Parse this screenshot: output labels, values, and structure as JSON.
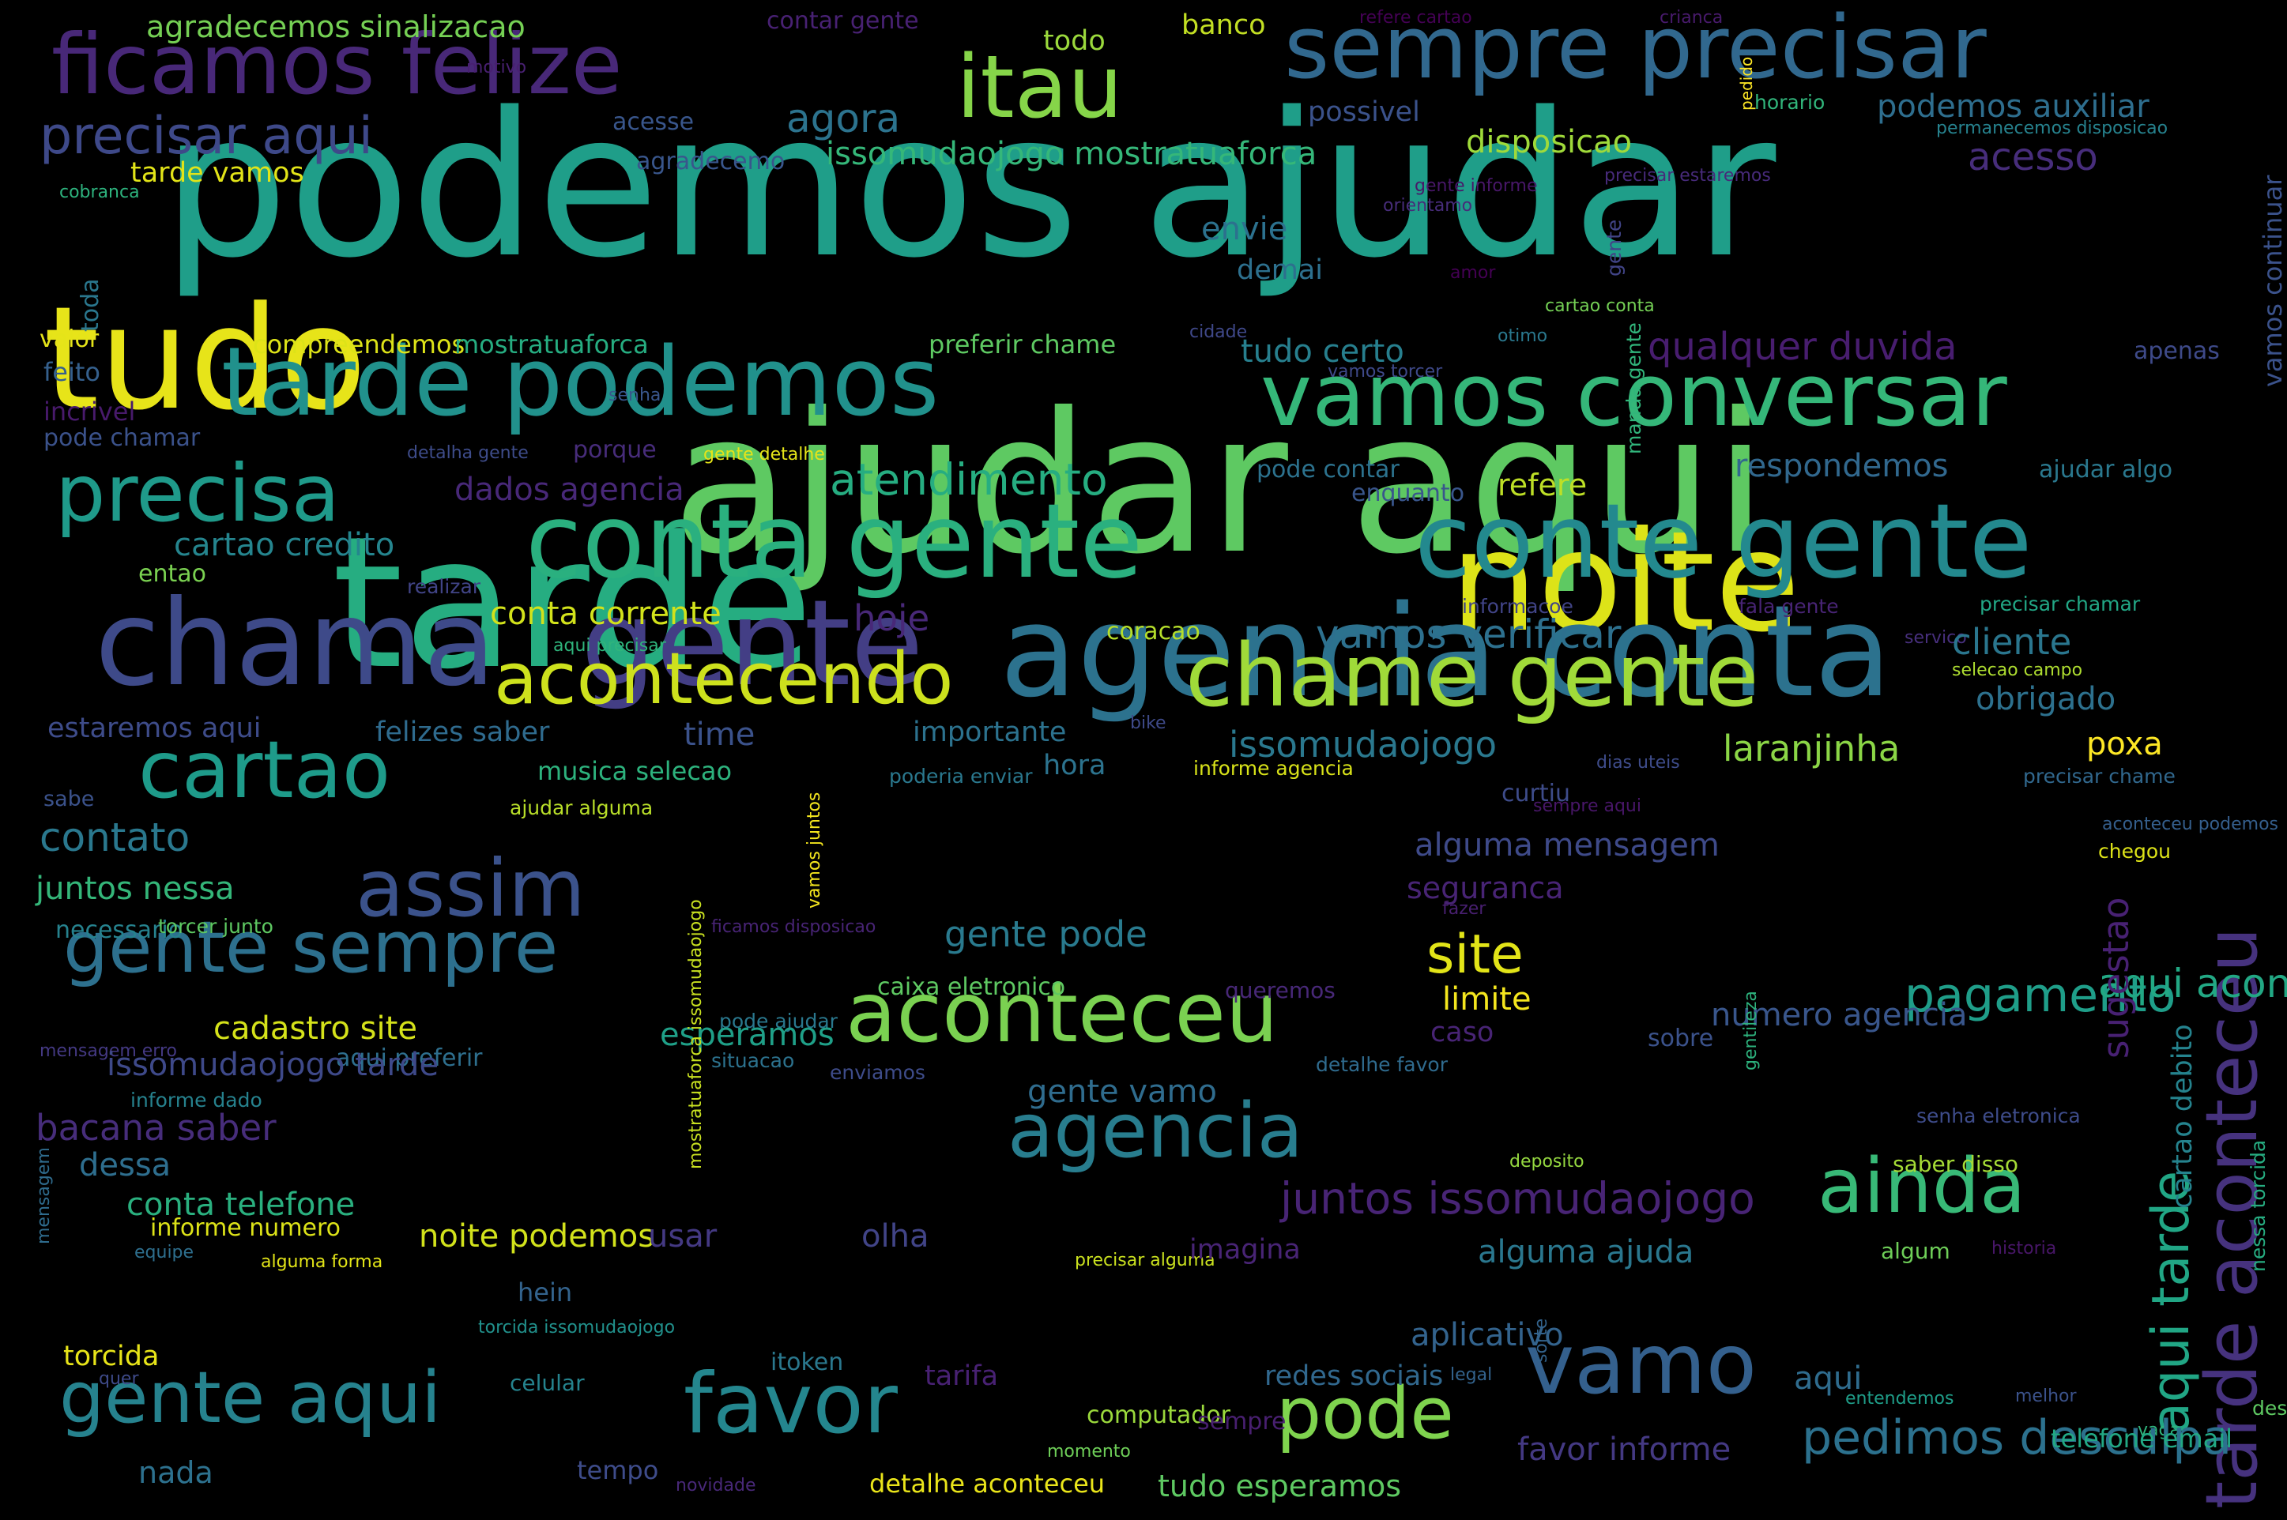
{
  "words": [
    {
      "text": "podemos ajudar",
      "color": "#1f9e89"
    },
    {
      "text": "ajudar aqui",
      "color": "#5ec962"
    },
    {
      "text": "tarde",
      "color": "#26ad81"
    },
    {
      "text": "tudo",
      "color": "#e7e419"
    },
    {
      "text": "noite",
      "color": "#dde318"
    },
    {
      "text": "agencia conta",
      "color": "#2c728e"
    },
    {
      "text": "chama",
      "color": "#3e4a89"
    },
    {
      "text": "gente",
      "color": "#433e85"
    },
    {
      "text": "conta gente",
      "color": "#2ab07f"
    },
    {
      "text": "conte gente",
      "color": "#23898e"
    },
    {
      "text": "tarde podemos",
      "color": "#21918c"
    },
    {
      "text": "vamos conversar",
      "color": "#35b779"
    },
    {
      "text": "chame gente",
      "color": "#a0da39"
    },
    {
      "text": "acontecendo",
      "color": "#cde11d"
    },
    {
      "text": "aconteceu",
      "color": "#7ad151"
    },
    {
      "text": "itau",
      "color": "#86d549"
    },
    {
      "text": "sempre precisar",
      "color": "#31688e"
    },
    {
      "text": "ficamos felize",
      "color": "#482878"
    },
    {
      "text": "precisa",
      "color": "#1f9a8a"
    },
    {
      "text": "cartao",
      "color": "#1e9b8a"
    },
    {
      "text": "assim",
      "color": "#3b528b"
    },
    {
      "text": "gente sempre",
      "color": "#2d708e"
    },
    {
      "text": "gente aqui",
      "color": "#26828e"
    },
    {
      "text": "favor",
      "color": "#24868e"
    },
    {
      "text": "vamo",
      "color": "#34608d"
    },
    {
      "text": "pode",
      "color": "#7fd34e"
    },
    {
      "text": "agencia",
      "color": "#287d8e"
    },
    {
      "text": "ainda",
      "color": "#38b977"
    },
    {
      "text": "tarde aconteceu",
      "color": "#46327e"
    },
    {
      "text": "aqui tarde",
      "color": "#21a685"
    },
    {
      "text": "precisar aqui",
      "color": "#3e4989"
    },
    {
      "text": "agradecemos sinalizacao",
      "color": "#75d054"
    },
    {
      "text": "contar gente",
      "color": "#482173"
    },
    {
      "text": "todo",
      "color": "#9bd93c"
    },
    {
      "text": "banco",
      "color": "#c2df23"
    },
    {
      "text": "refere cartao",
      "color": "#440154"
    },
    {
      "text": "crianca",
      "color": "#481a6c"
    },
    {
      "text": "motivo",
      "color": "#482071"
    },
    {
      "text": "agora",
      "color": "#2c738e"
    },
    {
      "text": "possivel",
      "color": "#3b528b"
    },
    {
      "text": "horario",
      "color": "#31b57b"
    },
    {
      "text": "pedido",
      "color": "#fde725"
    },
    {
      "text": "podemos auxiliar",
      "color": "#2e6e8e"
    },
    {
      "text": "permanecemos disposicao",
      "color": "#26828e"
    },
    {
      "text": "acesse",
      "color": "#39568c"
    },
    {
      "text": "agradecemo",
      "color": "#39568c"
    },
    {
      "text": "issomudaojogo mostratuaforca",
      "color": "#35b779"
    },
    {
      "text": "disposicao",
      "color": "#9fda3a"
    },
    {
      "text": "acesso",
      "color": "#472d7b"
    },
    {
      "text": "tarde vamos",
      "color": "#e2e418"
    },
    {
      "text": "cobranca",
      "color": "#2db27d"
    },
    {
      "text": "gente informe",
      "color": "#481769"
    },
    {
      "text": "orientamo",
      "color": "#472c7a"
    },
    {
      "text": "precisar estaremos",
      "color": "#472a7a"
    },
    {
      "text": "envie",
      "color": "#2c718e"
    },
    {
      "text": "toda",
      "color": "#2a778e"
    },
    {
      "text": "demai",
      "color": "#2d708e"
    },
    {
      "text": "amor",
      "color": "#440154"
    },
    {
      "text": "gente",
      "color": "#414487"
    },
    {
      "text": "vamos continuar",
      "color": "#3b528b"
    },
    {
      "text": "cartao conta",
      "color": "#74d055"
    },
    {
      "text": "cidade",
      "color": "#3f4889"
    },
    {
      "text": "otimo",
      "color": "#2a788e"
    },
    {
      "text": "valor",
      "color": "#e5e419"
    },
    {
      "text": "compreendemos",
      "color": "#dde318"
    },
    {
      "text": "mostratuaforca",
      "color": "#26ad81"
    },
    {
      "text": "preferir chame",
      "color": "#5ec962"
    },
    {
      "text": "tudo certo",
      "color": "#277f8e"
    },
    {
      "text": "qualquer duvida",
      "color": "#481d6f"
    },
    {
      "text": "apenas",
      "color": "#3e4a89"
    },
    {
      "text": "feito",
      "color": "#35608d"
    },
    {
      "text": "vamos torcer",
      "color": "#3e4989"
    },
    {
      "text": "manda gente",
      "color": "#31b57b"
    },
    {
      "text": "incrivel",
      "color": "#481a6c"
    },
    {
      "text": "senha",
      "color": "#39568c"
    },
    {
      "text": "pode chamar",
      "color": "#3b528b"
    },
    {
      "text": "detalha gente",
      "color": "#3e4c8a"
    },
    {
      "text": "porque",
      "color": "#472c7a"
    },
    {
      "text": "gente detalhe",
      "color": "#e5e419"
    },
    {
      "text": "respondemos",
      "color": "#31688e"
    },
    {
      "text": "ajudar algo",
      "color": "#2a788e"
    },
    {
      "text": "dados agencia",
      "color": "#482878"
    },
    {
      "text": "atendimento",
      "color": "#26ad81"
    },
    {
      "text": "pode contar",
      "color": "#2c728e"
    },
    {
      "text": "enquanto",
      "color": "#39568c"
    },
    {
      "text": "refere",
      "color": "#bddf26"
    },
    {
      "text": "cartao credito",
      "color": "#25858e"
    },
    {
      "text": "entao",
      "color": "#7ad151"
    },
    {
      "text": "realizar",
      "color": "#414487"
    },
    {
      "text": "informacoe",
      "color": "#414487"
    },
    {
      "text": "fala gente",
      "color": "#482475"
    },
    {
      "text": "precisar chamar",
      "color": "#22a785"
    },
    {
      "text": "servico",
      "color": "#472f7d"
    },
    {
      "text": "conta corrente",
      "color": "#d2e21b"
    },
    {
      "text": "hoje",
      "color": "#482878"
    },
    {
      "text": "aqui precisar",
      "color": "#2fb47c"
    },
    {
      "text": "coracao",
      "color": "#b5de2b"
    },
    {
      "text": "vamos verificar",
      "color": "#2d708e"
    },
    {
      "text": "cliente",
      "color": "#2a768e"
    },
    {
      "text": "selecao campo",
      "color": "#addc30"
    },
    {
      "text": "estaremos aqui",
      "color": "#3e4c8a"
    },
    {
      "text": "felizes saber",
      "color": "#2f6b8e"
    },
    {
      "text": "time",
      "color": "#3b528b"
    },
    {
      "text": "importante",
      "color": "#2c728e"
    },
    {
      "text": "bike",
      "color": "#3e4a89"
    },
    {
      "text": "obrigado",
      "color": "#2d718e"
    },
    {
      "text": "issomudaojogo",
      "color": "#2a788e"
    },
    {
      "text": "laranjinha",
      "color": "#8bd646"
    },
    {
      "text": "poxa",
      "color": "#fde725"
    },
    {
      "text": "dias uteis",
      "color": "#3e4c8a"
    },
    {
      "text": "musica selecao",
      "color": "#2db27d"
    },
    {
      "text": "hora",
      "color": "#2c738e"
    },
    {
      "text": "informe agencia",
      "color": "#d8e219"
    },
    {
      "text": "precisar chame",
      "color": "#31688e"
    },
    {
      "text": "sabe",
      "color": "#3b528b"
    },
    {
      "text": "poderia enviar",
      "color": "#2a788e"
    },
    {
      "text": "curtiu",
      "color": "#3e4c8a"
    },
    {
      "text": "ajudar alguma",
      "color": "#b8de29"
    },
    {
      "text": "sempre aqui",
      "color": "#481668"
    },
    {
      "text": "chegou",
      "color": "#dde318"
    },
    {
      "text": "aconteceu podemos",
      "color": "#355f8d"
    },
    {
      "text": "contato",
      "color": "#2a788e"
    },
    {
      "text": "alguma mensagem",
      "color": "#3e4a89"
    },
    {
      "text": "vamos juntos",
      "color": "#f4e61e"
    },
    {
      "text": "juntos nessa",
      "color": "#34b679"
    },
    {
      "text": "seguranca",
      "color": "#482475"
    },
    {
      "text": "fazer",
      "color": "#481f70"
    },
    {
      "text": "necessario",
      "color": "#26828e"
    },
    {
      "text": "torcer junto",
      "color": "#5ec962"
    },
    {
      "text": "ficamos disposicao",
      "color": "#482475"
    },
    {
      "text": "gente pode",
      "color": "#297a8e"
    },
    {
      "text": "site",
      "color": "#e2e418"
    },
    {
      "text": "pagamento",
      "color": "#1f9e89"
    },
    {
      "text": "aqui aconteceu",
      "color": "#22a884"
    },
    {
      "text": "cartao debito",
      "color": "#25838e"
    },
    {
      "text": "caixa eletronico",
      "color": "#5ec962"
    },
    {
      "text": "queremos",
      "color": "#482878"
    },
    {
      "text": "limite",
      "color": "#f4e61e"
    },
    {
      "text": "pode ajudar",
      "color": "#2a788e"
    },
    {
      "text": "numero agencia",
      "color": "#39568c"
    },
    {
      "text": "cadastro site",
      "color": "#d5e21a"
    },
    {
      "text": "caso",
      "color": "#482475"
    },
    {
      "text": "sugestao",
      "color": "#482173"
    },
    {
      "text": "mensagem erro",
      "color": "#443983"
    },
    {
      "text": "aqui preferir",
      "color": "#2e6f8e"
    },
    {
      "text": "sobre",
      "color": "#3b528b"
    },
    {
      "text": "esperamos",
      "color": "#1fa088"
    },
    {
      "text": "issomudaojogo tarde",
      "color": "#3e4989"
    },
    {
      "text": "situacao",
      "color": "#2c728e"
    },
    {
      "text": "enviamos",
      "color": "#3e4c8a"
    },
    {
      "text": "gentileza",
      "color": "#2db27d"
    },
    {
      "text": "detalhe favor",
      "color": "#2f6b8e"
    },
    {
      "text": "informe dado",
      "color": "#26828e"
    },
    {
      "text": "gente vamo",
      "color": "#2f6c8e"
    },
    {
      "text": "bacana saber",
      "color": "#472d7b"
    },
    {
      "text": "senha eletronica",
      "color": "#3e4c8a"
    },
    {
      "text": "nessa torcida",
      "color": "#26ad81"
    },
    {
      "text": "dessa",
      "color": "#2e6e8e"
    },
    {
      "text": "mostratuaforca issomudaojogo",
      "color": "#c8e020"
    },
    {
      "text": "deposito",
      "color": "#95d840"
    },
    {
      "text": "saber disso",
      "color": "#a5db36"
    },
    {
      "text": "conta telefone",
      "color": "#2ab07f"
    },
    {
      "text": "juntos issomudaojogo",
      "color": "#482475"
    },
    {
      "text": "mensagem",
      "color": "#2f6c8e"
    },
    {
      "text": "informe numero",
      "color": "#dde318"
    },
    {
      "text": "noite podemos",
      "color": "#d2e21b"
    },
    {
      "text": "usar",
      "color": "#443983"
    },
    {
      "text": "olha",
      "color": "#414487"
    },
    {
      "text": "equipe",
      "color": "#2e6f8e"
    },
    {
      "text": "alguma forma",
      "color": "#e2e418"
    },
    {
      "text": "precisar alguma",
      "color": "#cae11f"
    },
    {
      "text": "imagina",
      "color": "#482475"
    },
    {
      "text": "alguma ajuda",
      "color": "#2a778e"
    },
    {
      "text": "algum",
      "color": "#6ece58"
    },
    {
      "text": "historia",
      "color": "#481668"
    },
    {
      "text": "hein",
      "color": "#33638d"
    },
    {
      "text": "torcida issomudaojogo",
      "color": "#21918c"
    },
    {
      "text": "aplicativo",
      "color": "#33638d"
    },
    {
      "text": "torcida",
      "color": "#e7e419"
    },
    {
      "text": "quer",
      "color": "#3e4a89"
    },
    {
      "text": "celular",
      "color": "#25838e"
    },
    {
      "text": "itoken",
      "color": "#2a788e"
    },
    {
      "text": "tarifa",
      "color": "#482173"
    },
    {
      "text": "redes sociais",
      "color": "#31688e"
    },
    {
      "text": "legal",
      "color": "#33638d"
    },
    {
      "text": "aqui",
      "color": "#2f6c8e"
    },
    {
      "text": "computador",
      "color": "#9bd93c"
    },
    {
      "text": "sempre",
      "color": "#481f70"
    },
    {
      "text": "entendemos",
      "color": "#1f9e89"
    },
    {
      "text": "melhor",
      "color": "#3b528b"
    },
    {
      "text": "sorte",
      "color": "#33638d"
    },
    {
      "text": "momento",
      "color": "#6ece58"
    },
    {
      "text": "vaga",
      "color": "#2fb47c"
    },
    {
      "text": "pedimos desculpa",
      "color": "#2c718e"
    },
    {
      "text": "desse",
      "color": "#5ec962"
    },
    {
      "text": "favor informe",
      "color": "#443983"
    },
    {
      "text": "telefone email",
      "color": "#22a884"
    },
    {
      "text": "nada",
      "color": "#2d718e"
    },
    {
      "text": "tempo",
      "color": "#3e4c8a"
    },
    {
      "text": "novidade",
      "color": "#482878"
    },
    {
      "text": "detalhe aconteceu",
      "color": "#eae51a"
    },
    {
      "text": "tudo esperamos",
      "color": "#5ec962"
    }
  ]
}
